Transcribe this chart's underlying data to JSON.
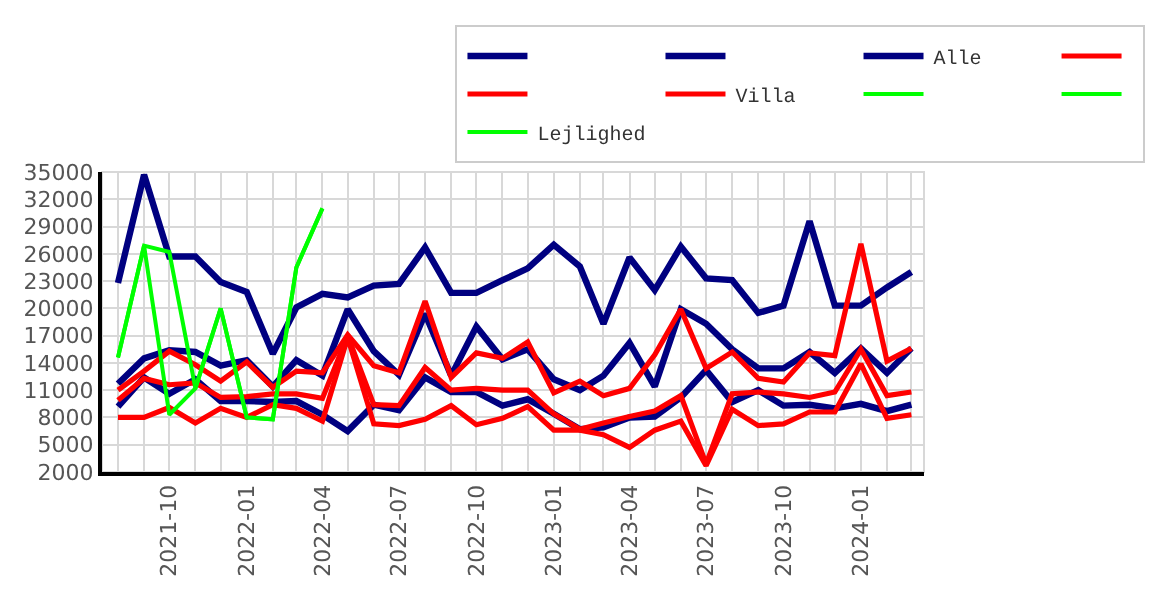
{
  "chart_data": {
    "type": "line",
    "x": [
      "2021-08",
      "2021-09",
      "2021-10",
      "2021-11",
      "2021-12",
      "2022-01",
      "2022-02",
      "2022-03",
      "2022-04",
      "2022-05",
      "2022-06",
      "2022-07",
      "2022-08",
      "2022-09",
      "2022-10",
      "2022-11",
      "2022-12",
      "2023-01",
      "2023-02",
      "2023-03",
      "2023-04",
      "2023-05",
      "2023-06",
      "2023-07",
      "2023-08",
      "2023-09",
      "2023-10",
      "2023-11",
      "2023-12",
      "2024-01",
      "2024-02",
      "2024-03"
    ],
    "series": [
      {
        "color": "#000080",
        "values": [
          22800,
          34700,
          25700,
          25700,
          22900,
          21800,
          15000,
          20100,
          21600,
          21200,
          22500,
          22700,
          26700,
          21700,
          21700,
          23100,
          24400,
          27000,
          24600,
          18300,
          25600,
          22000,
          26800,
          23300,
          23100,
          19500,
          20300,
          29600,
          20300,
          20300,
          22300,
          24000
        ]
      },
      {
        "color": "#000080",
        "values": [
          11700,
          14500,
          15400,
          15200,
          13700,
          14300,
          11400,
          14300,
          12600,
          19900,
          15300,
          12700,
          19400,
          12600,
          18000,
          14400,
          15500,
          12200,
          11000,
          12600,
          16200,
          11400,
          19900,
          18300,
          15500,
          13400,
          13400,
          15200,
          12900,
          15600,
          12900,
          15600
        ]
      },
      {
        "name": "Alle",
        "color": "#000080",
        "values": [
          9200,
          12400,
          10600,
          12200,
          9800,
          9800,
          9700,
          9800,
          8300,
          6500,
          9400,
          8800,
          12400,
          10800,
          10800,
          9300,
          10000,
          8400,
          6700,
          6900,
          8000,
          8100,
          10200,
          13200,
          9700,
          11000,
          9300,
          9400,
          9000,
          9500,
          8700,
          9400
        ]
      },
      {
        "color": "#ff0000",
        "values": [
          11000,
          13100,
          15300,
          13800,
          12000,
          14100,
          11300,
          13100,
          12900,
          17100,
          13700,
          12900,
          20800,
          12400,
          15100,
          14500,
          16300,
          10700,
          12000,
          10400,
          11200,
          14900,
          19900,
          13400,
          15200,
          12300,
          11900,
          15100,
          14800,
          27100,
          14200,
          15600
        ]
      },
      {
        "color": "#ff0000",
        "values": [
          9900,
          12300,
          11600,
          11800,
          10200,
          10300,
          10600,
          10600,
          10100,
          17000,
          9400,
          9300,
          13500,
          11000,
          11200,
          11000,
          11000,
          8400,
          6700,
          7400,
          8100,
          8700,
          10400,
          2900,
          10600,
          10800,
          10600,
          10200,
          10800,
          15500,
          10400,
          10800
        ]
      },
      {
        "name": "Villa",
        "color": "#ff0000",
        "values": [
          8000,
          8000,
          9100,
          7400,
          9000,
          8000,
          9400,
          9000,
          7600,
          16800,
          7300,
          7100,
          7800,
          9300,
          7200,
          7900,
          9200,
          6600,
          6600,
          6100,
          4700,
          6600,
          7600,
          2700,
          8900,
          7100,
          7300,
          8600,
          8600,
          13900,
          7900,
          8300
        ]
      },
      {
        "color": "#00ff00",
        "values": [
          14600,
          26900,
          26200,
          11200,
          20000,
          8000,
          7800,
          24500,
          31000,
          null,
          null,
          null,
          null,
          null,
          null,
          null,
          null,
          null,
          null,
          null,
          null,
          null,
          null,
          null,
          null,
          null,
          null,
          null,
          null,
          null,
          null,
          null
        ]
      },
      {
        "color": "#00ff00",
        "values": [
          14600,
          26900,
          8300,
          11200,
          20000,
          8000,
          7800,
          24500,
          31000,
          null,
          null,
          null,
          null,
          null,
          null,
          null,
          null,
          null,
          null,
          null,
          null,
          null,
          null,
          null,
          null,
          null,
          null,
          null,
          null,
          null,
          null,
          null
        ]
      },
      {
        "name": "Lejlighed",
        "color": "#00ff00",
        "values": [
          null,
          null,
          null,
          null,
          null,
          null,
          null,
          null,
          null,
          null,
          null,
          null,
          null,
          null,
          null,
          null,
          null,
          null,
          null,
          null,
          null,
          null,
          null,
          null,
          null,
          null,
          null,
          null,
          null,
          null,
          null,
          null
        ]
      }
    ],
    "xlim": [
      "2021-07-13",
      "2024-03-16"
    ],
    "xticks": [
      {
        "value": "2021-08",
        "label": null
      },
      {
        "value": "2021-09",
        "label": null
      },
      {
        "value": "2021-10",
        "label": "2021-10"
      },
      {
        "value": "2021-11",
        "label": null
      },
      {
        "value": "2021-12",
        "label": null
      },
      {
        "value": "2022-01",
        "label": "2022-01"
      },
      {
        "value": "2022-02",
        "label": null
      },
      {
        "value": "2022-03",
        "label": null
      },
      {
        "value": "2022-04",
        "label": "2022-04"
      },
      {
        "value": "2022-05",
        "label": null
      },
      {
        "value": "2022-06",
        "label": null
      },
      {
        "value": "2022-07",
        "label": "2022-07"
      },
      {
        "value": "2022-08",
        "label": null
      },
      {
        "value": "2022-09",
        "label": null
      },
      {
        "value": "2022-10",
        "label": "2022-10"
      },
      {
        "value": "2022-11",
        "label": null
      },
      {
        "value": "2022-12",
        "label": null
      },
      {
        "value": "2023-01",
        "label": "2023-01"
      },
      {
        "value": "2023-02",
        "label": null
      },
      {
        "value": "2023-03",
        "label": null
      },
      {
        "value": "2023-04",
        "label": "2023-04"
      },
      {
        "value": "2023-05",
        "label": null
      },
      {
        "value": "2023-06",
        "label": null
      },
      {
        "value": "2023-07",
        "label": "2023-07"
      },
      {
        "value": "2023-08",
        "label": null
      },
      {
        "value": "2023-09",
        "label": null
      },
      {
        "value": "2023-10",
        "label": "2023-10"
      },
      {
        "value": "2023-11",
        "label": null
      },
      {
        "value": "2023-12",
        "label": null
      },
      {
        "value": "2024-01",
        "label": "2024-01"
      },
      {
        "value": "2024-02",
        "label": null
      },
      {
        "value": "2024-03",
        "label": null
      }
    ],
    "ylim": [
      2000,
      35000
    ],
    "yticks": [
      2000,
      5000,
      8000,
      11000,
      14000,
      17000,
      20000,
      23000,
      26000,
      29000,
      32000,
      35000
    ],
    "grid": true,
    "legend": "top right",
    "marker": "none",
    "line_style": "solid"
  }
}
